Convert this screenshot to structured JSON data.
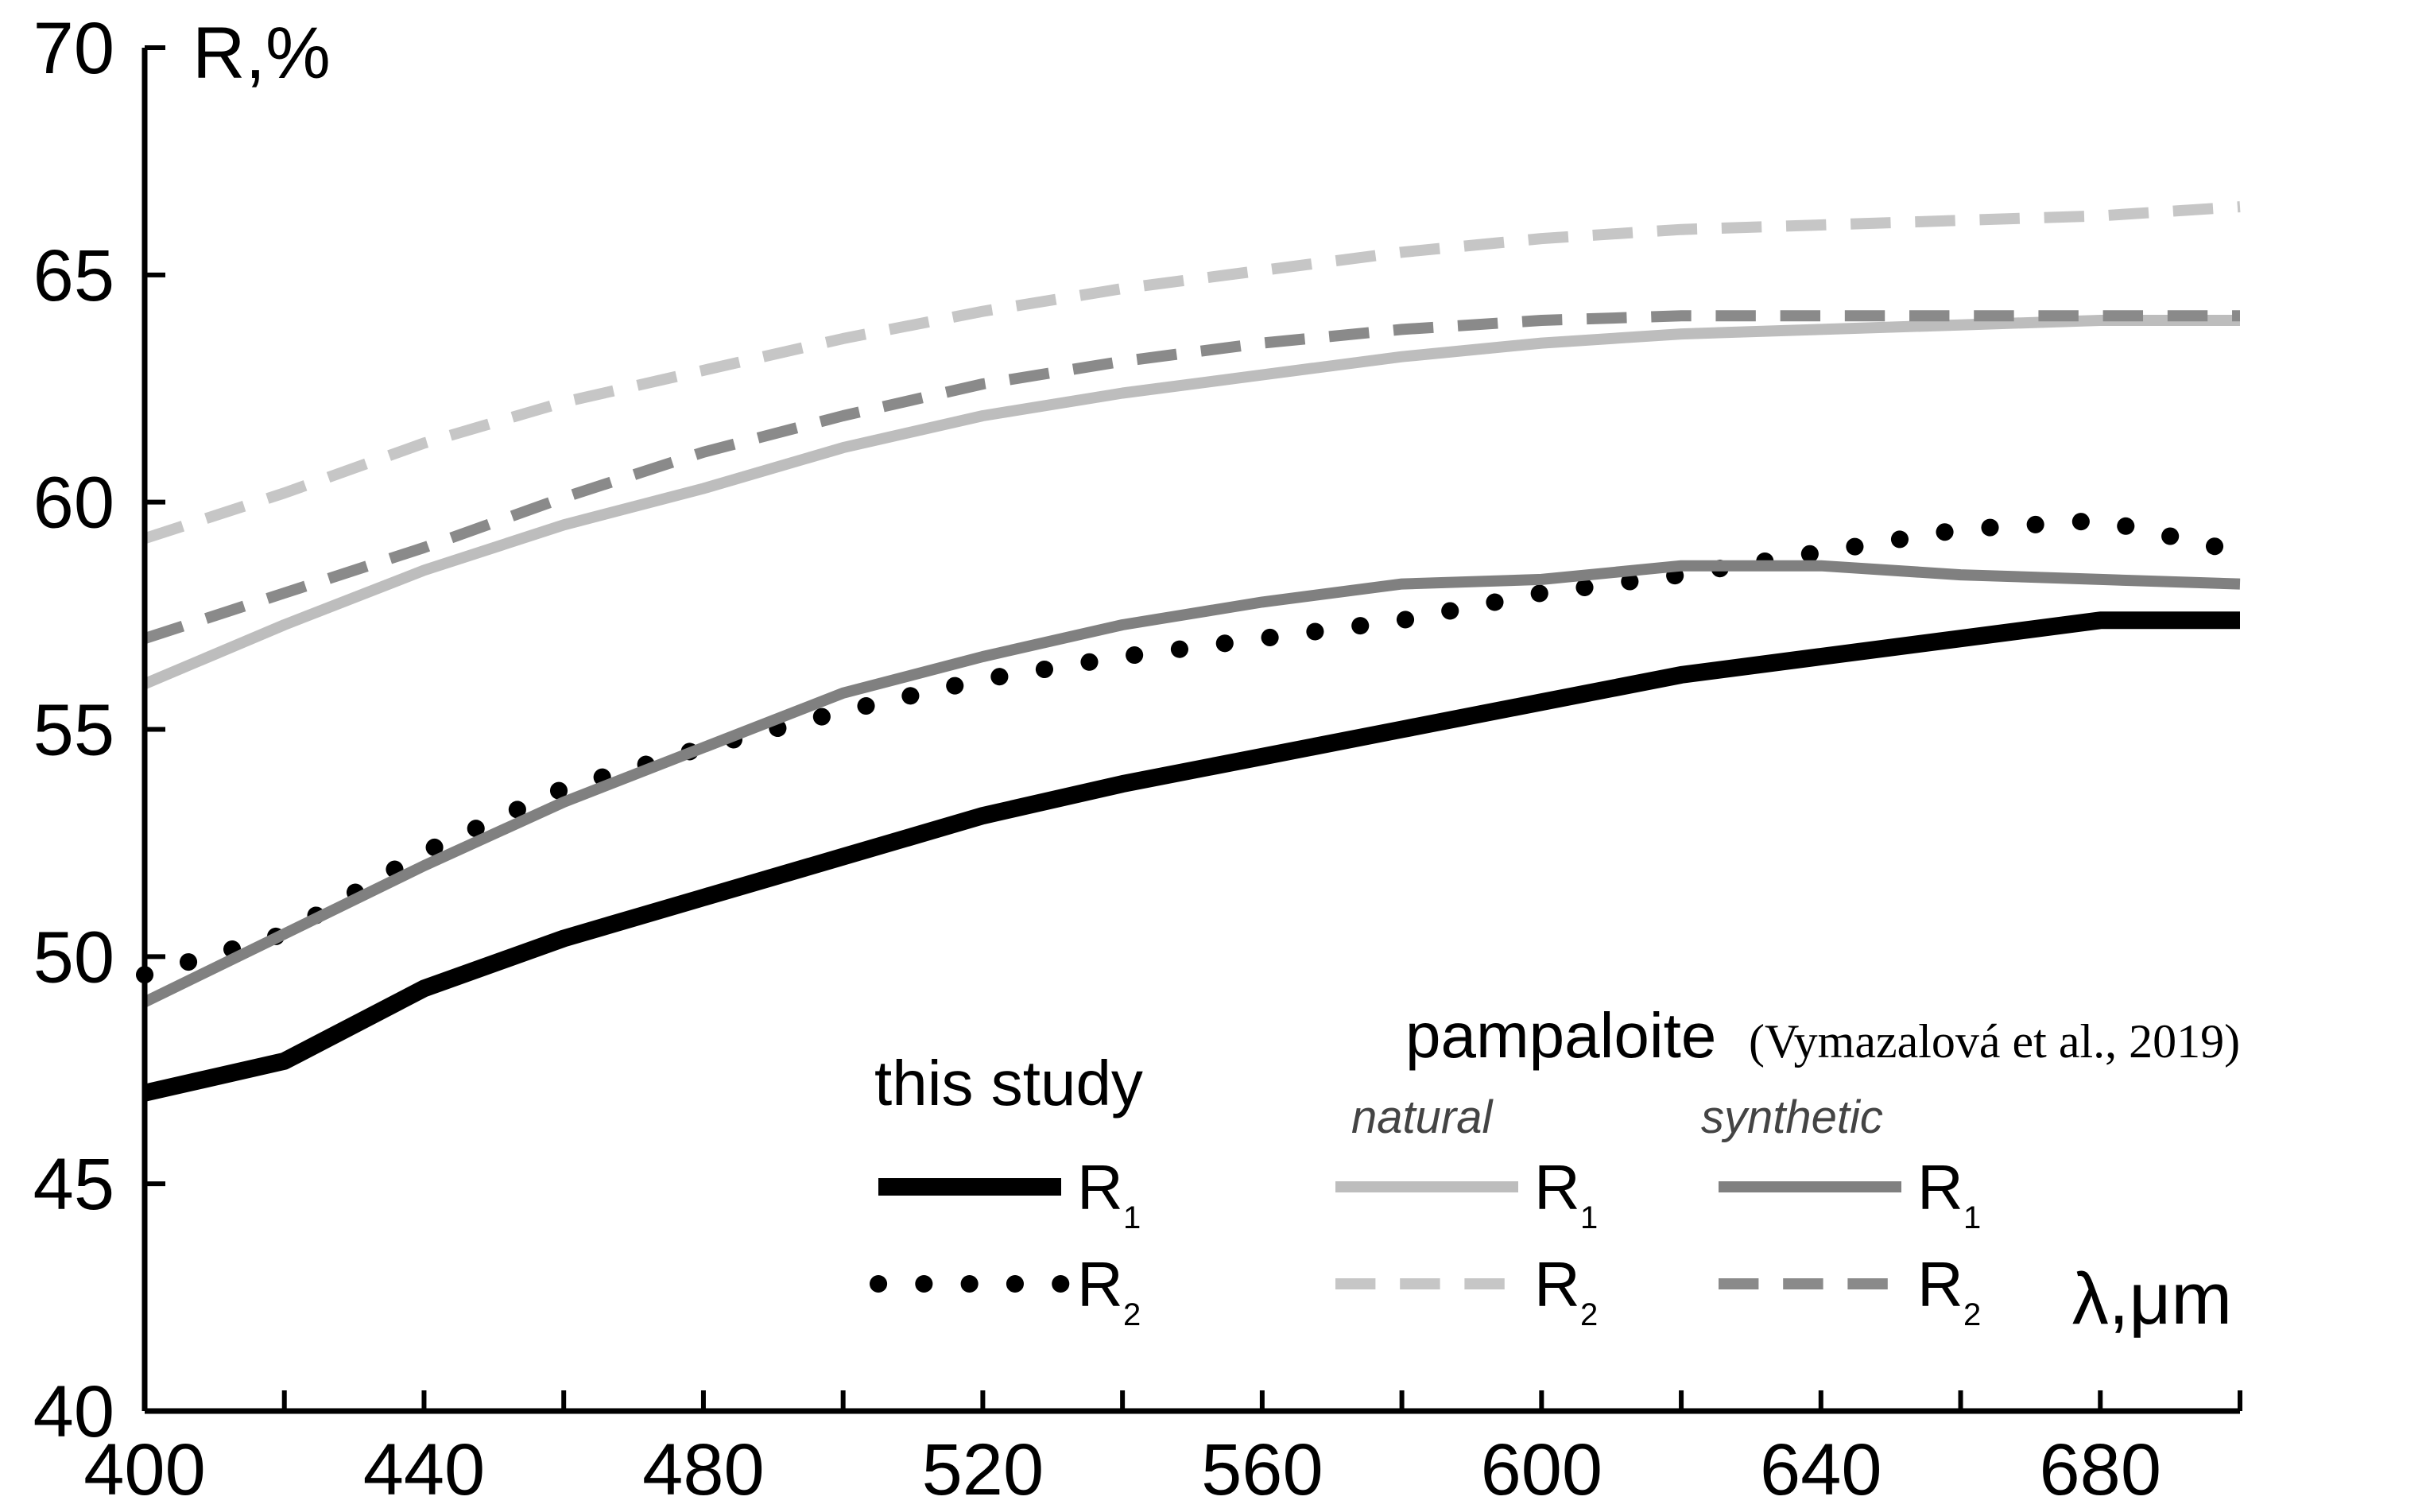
{
  "chart_data": {
    "type": "line",
    "title": "",
    "xlabel": "λ,μm",
    "ylabel": "R,%",
    "xlim": [
      400,
      700
    ],
    "ylim": [
      40,
      70
    ],
    "x_ticks": [
      400,
      420,
      440,
      460,
      480,
      500,
      520,
      540,
      560,
      580,
      600,
      620,
      640,
      660,
      680,
      700
    ],
    "x_tick_labels": [
      400,
      440,
      480,
      520,
      560,
      600,
      640,
      680
    ],
    "y_ticks": [
      40,
      45,
      50,
      55,
      60,
      65,
      70
    ],
    "grid": false,
    "x": [
      400,
      420,
      440,
      460,
      480,
      500,
      520,
      540,
      560,
      580,
      600,
      620,
      640,
      660,
      680,
      700
    ],
    "series": [
      {
        "name": "this study R1",
        "group": "this study",
        "label": "R",
        "sub": "1",
        "color": "#000000",
        "style": "solid",
        "width": 22,
        "values": [
          47.0,
          47.7,
          49.3,
          50.4,
          51.3,
          52.2,
          53.1,
          53.8,
          54.4,
          55.0,
          55.6,
          56.2,
          56.6,
          57.0,
          57.4,
          57.4
        ]
      },
      {
        "name": "this study R2",
        "group": "this study",
        "label": "R",
        "sub": "2",
        "color": "#000000",
        "style": "dotted",
        "width": 22,
        "values": [
          49.6,
          50.5,
          52.3,
          53.7,
          54.6,
          55.4,
          56.1,
          56.6,
          57.0,
          57.4,
          58.0,
          58.4,
          58.9,
          59.4,
          59.6,
          58.9
        ]
      },
      {
        "name": "pampaloite natural R1",
        "group": "natural",
        "label": "R",
        "sub": "1",
        "color": "#bdbdbd",
        "style": "solid",
        "width": 14,
        "values": [
          56.0,
          57.3,
          58.5,
          59.5,
          60.3,
          61.2,
          61.9,
          62.4,
          62.8,
          63.2,
          63.5,
          63.7,
          63.8,
          63.9,
          64.0,
          64.0
        ]
      },
      {
        "name": "pampaloite natural R2",
        "group": "natural",
        "label": "R",
        "sub": "2",
        "color": "#c6c6c6",
        "style": "dashed",
        "width": 14,
        "values": [
          59.2,
          60.2,
          61.3,
          62.2,
          62.9,
          63.6,
          64.2,
          64.7,
          65.1,
          65.5,
          65.8,
          66.0,
          66.1,
          66.2,
          66.3,
          66.5
        ]
      },
      {
        "name": "pampaloite synthetic R1",
        "group": "synthetic",
        "label": "R",
        "sub": "1",
        "color": "#808080",
        "style": "solid",
        "width": 14,
        "values": [
          49.0,
          50.5,
          52.0,
          53.4,
          54.6,
          55.8,
          56.6,
          57.3,
          57.8,
          58.2,
          58.3,
          58.6,
          58.6,
          58.4,
          58.3,
          58.2
        ]
      },
      {
        "name": "pampaloite synthetic R2",
        "group": "synthetic",
        "label": "R",
        "sub": "2",
        "color": "#8a8a8a",
        "style": "dashed",
        "width": 14,
        "values": [
          57.0,
          58.0,
          59.0,
          60.1,
          61.1,
          61.9,
          62.6,
          63.1,
          63.5,
          63.8,
          64.0,
          64.1,
          64.1,
          64.1,
          64.1,
          64.1
        ]
      }
    ],
    "legend": {
      "this_study_title": "this study",
      "pampaloite_title": "pampaloite",
      "citation": "(Vymazalová et al., 2019)",
      "natural_label": "natural",
      "synthetic_label": "synthetic",
      "placement": "bottom-right"
    }
  }
}
